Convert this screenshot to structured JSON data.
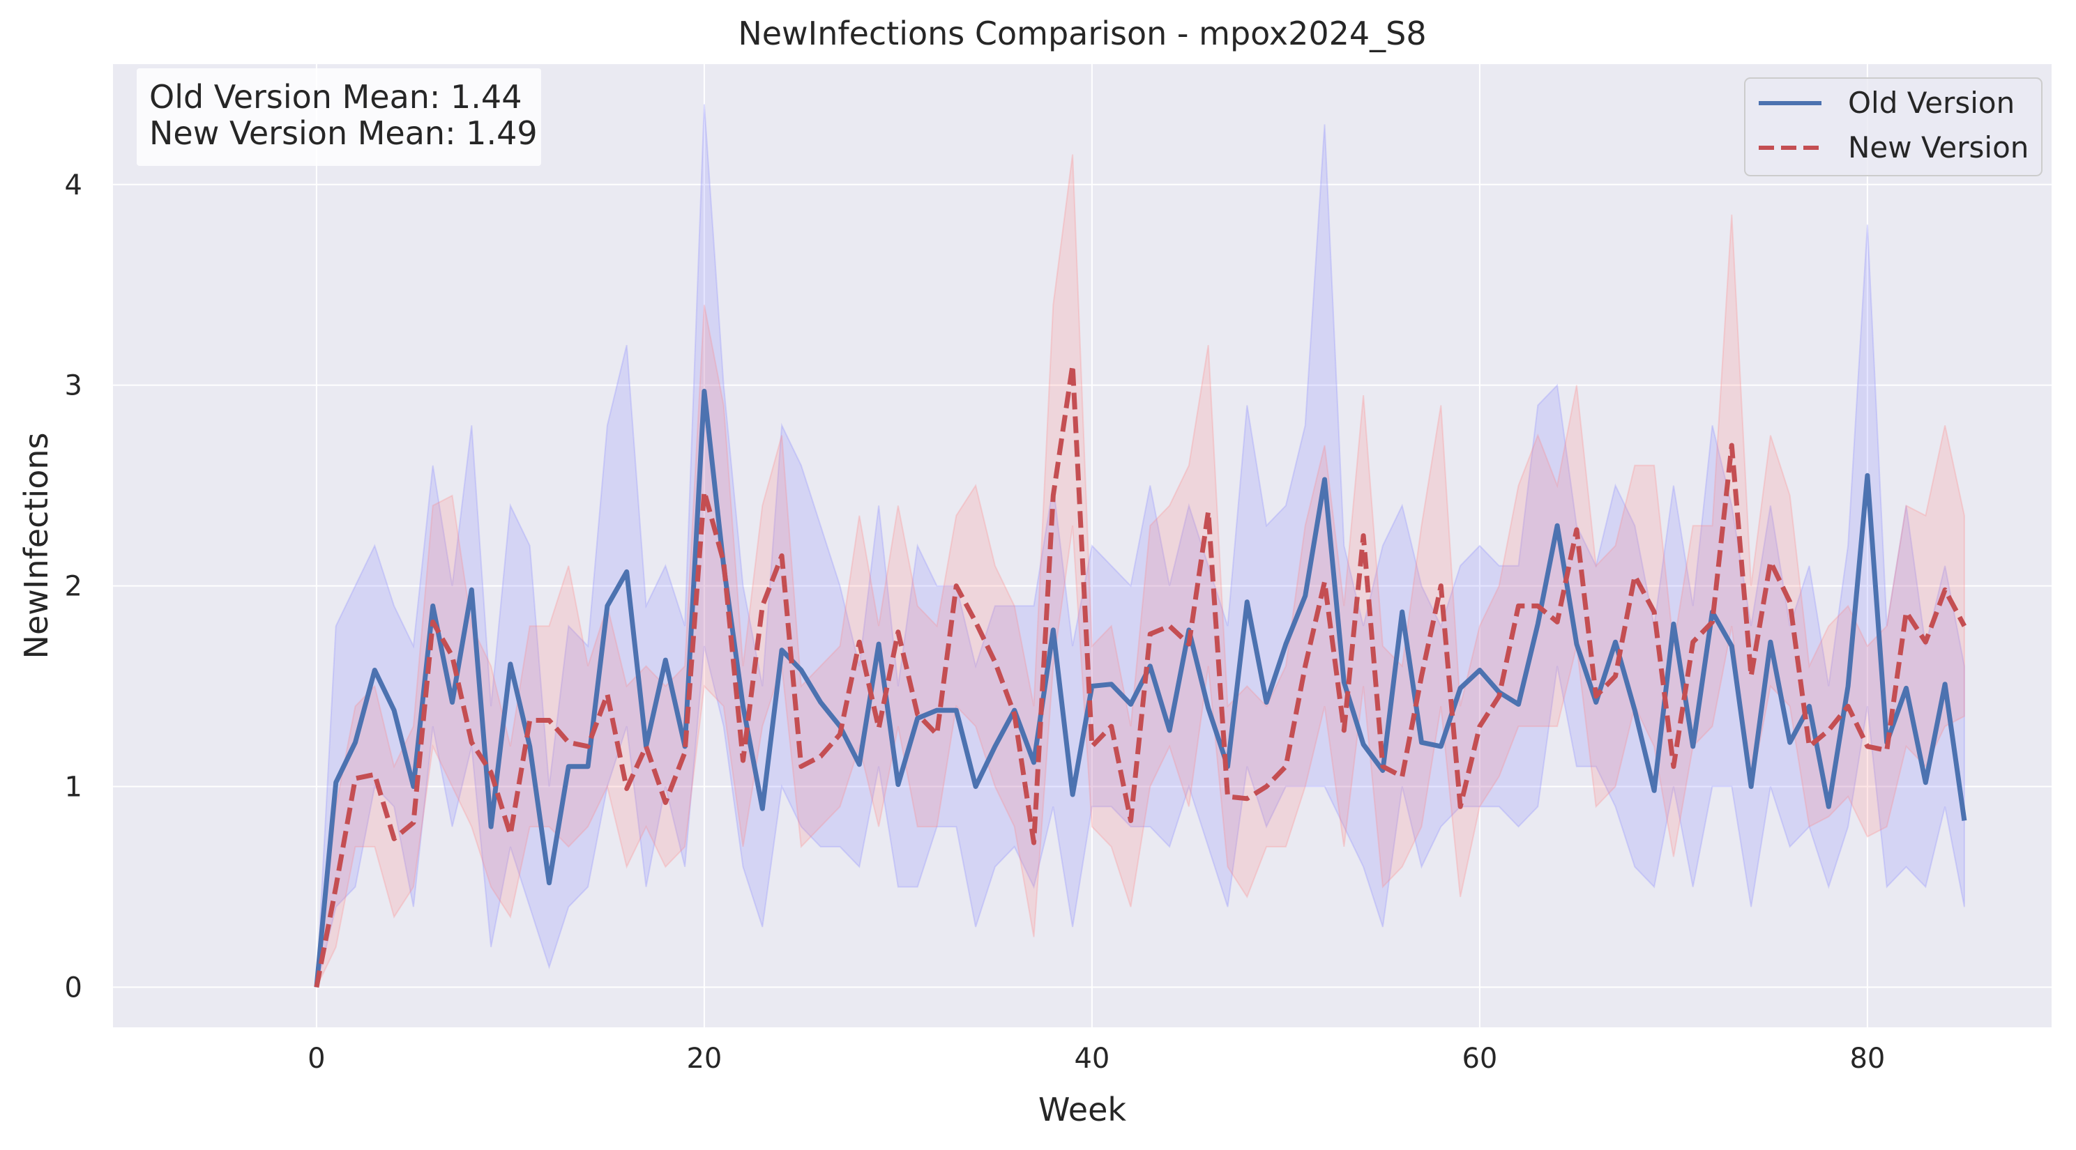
{
  "chart_data": {
    "type": "line",
    "title": "NewInfections Comparison - mpox2024_S8",
    "xlabel": "Week",
    "ylabel": "NewInfections",
    "xlim": [
      -10.5,
      89.5
    ],
    "ylim": [
      -0.2,
      4.6
    ],
    "x_ticks": [
      0,
      20,
      40,
      60,
      80
    ],
    "y_ticks": [
      0,
      1,
      2,
      3,
      4
    ],
    "grid": true,
    "legend_position": "top-right",
    "annotation": [
      "Old Version Mean: 1.44",
      "New Version Mean: 1.49"
    ],
    "x": [
      0,
      1,
      2,
      3,
      4,
      5,
      6,
      7,
      8,
      9,
      10,
      11,
      12,
      13,
      14,
      15,
      16,
      17,
      18,
      19,
      20,
      21,
      22,
      23,
      24,
      25,
      26,
      27,
      28,
      29,
      30,
      31,
      32,
      33,
      34,
      35,
      36,
      37,
      38,
      39,
      40,
      41,
      42,
      43,
      44,
      45,
      46,
      47,
      48,
      49,
      50,
      51,
      52,
      53,
      54,
      55,
      56,
      57,
      58,
      59,
      60,
      61,
      62,
      63,
      64,
      65,
      66,
      67,
      68,
      69,
      70,
      71,
      72,
      73,
      74,
      75,
      76,
      77,
      78,
      79,
      80,
      81,
      82,
      83,
      84,
      85
    ],
    "series": [
      {
        "name": "Old Version",
        "color": "#4c72b0",
        "band_color": "#7f7fff",
        "line_style": "solid",
        "values": [
          0,
          1.02,
          1.22,
          1.58,
          1.38,
          1.0,
          1.9,
          1.42,
          1.98,
          0.8,
          1.61,
          1.2,
          0.52,
          1.1,
          1.1,
          1.9,
          2.07,
          1.2,
          1.63,
          1.2,
          2.97,
          2.1,
          1.4,
          0.89,
          1.68,
          1.58,
          1.42,
          1.3,
          1.11,
          1.71,
          1.01,
          1.34,
          1.38,
          1.38,
          1.0,
          1.2,
          1.38,
          1.12,
          1.78,
          0.96,
          1.5,
          1.51,
          1.41,
          1.6,
          1.28,
          1.78,
          1.39,
          1.1,
          1.92,
          1.42,
          1.71,
          1.95,
          2.53,
          1.52,
          1.21,
          1.08,
          1.87,
          1.22,
          1.2,
          1.49,
          1.58,
          1.47,
          1.41,
          1.81,
          2.3,
          1.71,
          1.42,
          1.72,
          1.38,
          0.98,
          1.81,
          1.2,
          1.87,
          1.7,
          1.0,
          1.72,
          1.22,
          1.4,
          0.9,
          1.5,
          2.55,
          1.22,
          1.49,
          1.02,
          1.51,
          0.83
        ],
        "lower": [
          0,
          0.4,
          0.5,
          1.0,
          0.9,
          0.4,
          1.3,
          0.8,
          1.2,
          0.2,
          0.7,
          0.4,
          0.1,
          0.4,
          0.5,
          1.0,
          1.3,
          0.5,
          1.0,
          0.6,
          1.7,
          1.3,
          0.6,
          0.3,
          1.0,
          0.8,
          0.7,
          0.7,
          0.6,
          1.1,
          0.5,
          0.5,
          0.8,
          0.8,
          0.3,
          0.6,
          0.7,
          0.5,
          0.9,
          0.3,
          0.9,
          0.9,
          0.8,
          0.8,
          0.7,
          1.0,
          0.7,
          0.4,
          1.1,
          0.8,
          1.0,
          1.0,
          1.0,
          0.8,
          0.6,
          0.3,
          1.0,
          0.6,
          0.8,
          0.9,
          0.9,
          0.9,
          0.8,
          0.9,
          1.6,
          1.1,
          1.1,
          0.9,
          0.6,
          0.5,
          1.0,
          0.5,
          1.0,
          1.0,
          0.4,
          1.0,
          0.7,
          0.8,
          0.5,
          0.8,
          1.4,
          0.5,
          0.6,
          0.5,
          0.9,
          0.4
        ],
        "upper": [
          0,
          1.8,
          2.0,
          2.2,
          1.9,
          1.7,
          2.6,
          2.0,
          2.8,
          1.4,
          2.4,
          2.2,
          1.0,
          1.8,
          1.7,
          2.8,
          3.2,
          1.9,
          2.1,
          1.8,
          4.4,
          3.0,
          2.0,
          1.5,
          2.8,
          2.6,
          2.3,
          2.0,
          1.6,
          2.4,
          1.5,
          2.2,
          2.0,
          2.0,
          1.6,
          1.9,
          1.9,
          1.9,
          2.5,
          1.7,
          2.2,
          2.1,
          2.0,
          2.5,
          2.0,
          2.4,
          2.1,
          1.8,
          2.9,
          2.3,
          2.4,
          2.8,
          4.3,
          2.2,
          1.8,
          2.2,
          2.4,
          2.0,
          1.8,
          2.1,
          2.2,
          2.1,
          2.1,
          2.9,
          3.0,
          2.3,
          2.1,
          2.5,
          2.3,
          1.8,
          2.5,
          1.9,
          2.8,
          2.4,
          1.8,
          2.4,
          1.8,
          2.1,
          1.5,
          2.2,
          3.8,
          1.8,
          2.4,
          1.7,
          2.1,
          1.6
        ]
      },
      {
        "name": "New Version",
        "color": "#c44e52",
        "band_color": "#ff8080",
        "line_style": "dashed",
        "values": [
          0,
          0.5,
          1.04,
          1.06,
          0.74,
          0.82,
          1.82,
          1.65,
          1.22,
          1.07,
          0.76,
          1.33,
          1.33,
          1.22,
          1.2,
          1.46,
          0.99,
          1.2,
          0.92,
          1.17,
          2.47,
          2.12,
          1.13,
          1.9,
          2.15,
          1.1,
          1.15,
          1.26,
          1.72,
          1.29,
          1.77,
          1.36,
          1.26,
          2.0,
          1.82,
          1.62,
          1.36,
          0.72,
          2.45,
          3.1,
          1.2,
          1.3,
          0.83,
          1.76,
          1.8,
          1.71,
          2.37,
          0.95,
          0.94,
          1.0,
          1.1,
          1.6,
          2.02,
          1.28,
          2.25,
          1.1,
          1.05,
          1.55,
          2.0,
          0.9,
          1.3,
          1.45,
          1.9,
          1.9,
          1.82,
          2.28,
          1.45,
          1.55,
          2.05,
          1.87,
          1.1,
          1.72,
          1.82,
          2.7,
          1.55,
          2.12,
          1.92,
          1.2,
          1.28,
          1.4,
          1.2,
          1.18,
          1.87,
          1.72,
          1.98,
          1.8
        ],
        "lower": [
          0,
          0.2,
          0.7,
          0.7,
          0.35,
          0.5,
          1.2,
          1.0,
          0.8,
          0.5,
          0.35,
          0.8,
          0.8,
          0.7,
          0.8,
          1.0,
          0.6,
          0.8,
          0.6,
          0.7,
          1.5,
          1.4,
          0.7,
          1.3,
          1.6,
          0.7,
          0.8,
          0.9,
          1.2,
          0.8,
          1.3,
          0.8,
          0.8,
          1.4,
          1.3,
          1.0,
          0.8,
          0.25,
          1.6,
          2.3,
          0.8,
          0.7,
          0.4,
          1.0,
          1.2,
          0.9,
          1.6,
          0.6,
          0.45,
          0.7,
          0.7,
          1.0,
          1.4,
          0.7,
          1.5,
          0.5,
          0.6,
          0.8,
          1.4,
          0.45,
          0.9,
          1.05,
          1.3,
          1.3,
          1.3,
          1.7,
          0.9,
          1.0,
          1.4,
          1.2,
          0.65,
          1.2,
          1.3,
          1.8,
          1.0,
          1.5,
          1.4,
          0.8,
          0.85,
          0.95,
          0.75,
          0.8,
          1.2,
          1.1,
          1.3,
          1.35
        ],
        "upper": [
          0,
          0.9,
          1.4,
          1.5,
          1.1,
          1.3,
          2.4,
          2.45,
          1.8,
          1.6,
          1.2,
          1.8,
          1.8,
          2.1,
          1.6,
          1.9,
          1.5,
          1.6,
          1.5,
          1.6,
          3.4,
          2.9,
          1.6,
          2.4,
          2.75,
          1.5,
          1.6,
          1.7,
          2.35,
          1.8,
          2.4,
          1.9,
          1.8,
          2.35,
          2.5,
          2.1,
          1.9,
          1.4,
          3.4,
          4.15,
          1.7,
          1.8,
          1.3,
          2.3,
          2.4,
          2.6,
          3.2,
          1.4,
          1.5,
          1.4,
          1.6,
          2.3,
          2.7,
          1.9,
          2.95,
          1.7,
          1.6,
          2.3,
          2.9,
          1.4,
          1.8,
          2.0,
          2.5,
          2.75,
          2.5,
          3.0,
          2.1,
          2.2,
          2.6,
          2.6,
          1.7,
          2.3,
          2.3,
          3.85,
          2.0,
          2.75,
          2.45,
          1.6,
          1.8,
          1.9,
          1.7,
          1.8,
          2.4,
          2.35,
          2.8,
          2.35
        ]
      }
    ]
  }
}
